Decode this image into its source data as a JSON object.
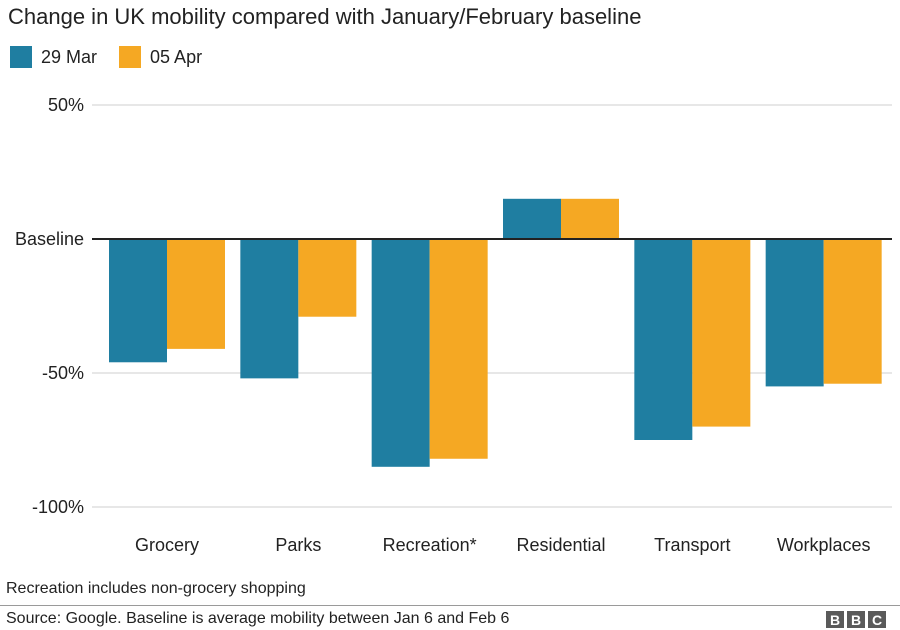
{
  "chart_data": {
    "type": "bar",
    "title": "Change in UK mobility compared with January/February baseline",
    "categories": [
      "Grocery",
      "Parks",
      "Recreation*",
      "Residential",
      "Transport",
      "Workplaces"
    ],
    "series": [
      {
        "name": "29 Mar",
        "color": "#1f7ea1",
        "values": [
          -46,
          -52,
          -85,
          15,
          -75,
          -55
        ]
      },
      {
        "name": "05 Apr",
        "color": "#f5a823",
        "values": [
          -41,
          -29,
          -82,
          15,
          -70,
          -54
        ]
      }
    ],
    "yticks": [
      {
        "value": 50,
        "label": "50%"
      },
      {
        "value": 0,
        "label": "Baseline"
      },
      {
        "value": -50,
        "label": "-50%"
      },
      {
        "value": -100,
        "label": "-100%"
      }
    ],
    "ylim": [
      -100,
      50
    ],
    "grid": true,
    "legend": "top-left"
  },
  "footer": {
    "note": "Recreation includes non-grocery shopping",
    "source": "Source: Google. Baseline is average mobility between Jan 6 and Feb 6",
    "logo_letters": [
      "B",
      "B",
      "C"
    ]
  }
}
